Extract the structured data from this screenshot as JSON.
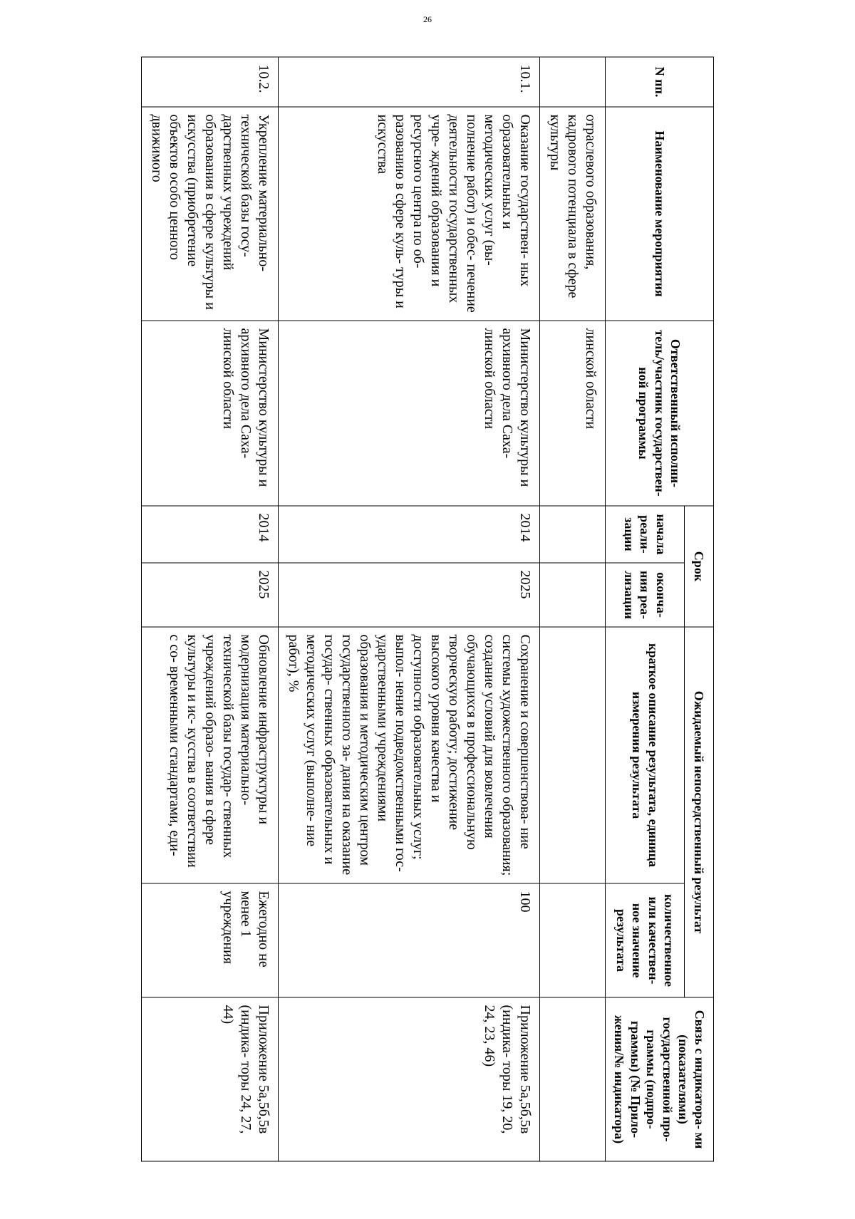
{
  "page_number": "26",
  "header": {
    "col_npp": "N пп.",
    "col_name": "Наименование мероприятия",
    "col_exec": "Ответственный исполни-\nтель/участник государствен-\nной программы",
    "col_srok": "Срок",
    "col_srok_start": "начала реали-\nзации",
    "col_srok_end": "оконча-\nния реа-\nлизации",
    "col_result": "Ожидаемый непосредственный результат",
    "col_result_desc": "краткое описание результата, единица измерения результата",
    "col_result_val": "количественное или качествен-\nное значение результата",
    "col_link": "Связь с индикатора-\nми (показателями) государственной про-\nграммы (подпро-\nграммы) (№ Прило-\nжения/№ индикатора)"
  },
  "rows": [
    {
      "npp": "",
      "name": "отраслевого образования, кадрового потенциала в сфере культуры",
      "exec": "линской области",
      "start": "",
      "end": "",
      "result_desc": "",
      "result_val": "",
      "link": ""
    },
    {
      "npp": "10.1.",
      "name": "Оказание государствен-\nных образовательных и методических услуг (вы-\nполнение работ) и обес-\nпечение деятельности государственных учре-\nждений образования и ресурсного центра по об-\nразованию в сфере куль-\nтуры и искусства",
      "exec": "Министерство культуры и архивного дела Саха-\nлинской области",
      "start": "2014",
      "end": "2025",
      "result_desc": "Сохранение и совершенствова-\nние системы художественного образования; создание условий для вовлечения обучающихся в профессиональную творческую работу; достижение высокого уровня качества и доступности образовательных услуг; выпол-\nнение подведомственными гос-\nударственными учреждениями образования и методическим центром государственного за-\nдания на оказание государ-\nственных образовательных и методических услуг (выполне-\nние работ), %",
      "result_val": "100",
      "link": "Приложение 5а,5б,5в (индика-\nторы 19, 20, 24, 23, 46)"
    },
    {
      "npp": "10.2.",
      "name": "Укрепление материально-\nтехнической базы госу-\nдарственных учреждений образования в сфере культуры и искусства (приобретение объектов особо ценного движимого",
      "exec": "Министерство культуры и архивного дела Саха-\nлинской области",
      "start": "2014",
      "end": "2025",
      "result_desc": "Обновление инфраструктуры и модернизация материально-\nтехнической базы государ-\nственных учреждений образо-\nвания в сфере культуры и ис-\nкусства в соответствии с со-\nвременными стандартами, еди-",
      "result_val": "Ежегодно не менее 1 учреждения",
      "link": "Приложение 5а,5б,5в (индика-\nторы 24, 27, 44)"
    }
  ]
}
